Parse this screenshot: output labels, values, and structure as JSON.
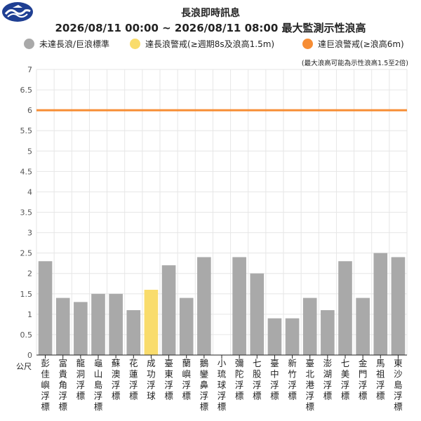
{
  "header": {
    "title_line1": "長浪即時訊息",
    "title_line2": "2026/08/11 00:00 ~ 2026/08/11 08:00 最大監測示性浪高",
    "logo_icon": "cwa-logo-icon"
  },
  "legend": [
    {
      "label": "未達長浪/巨浪標準",
      "color": "#a9a9a9"
    },
    {
      "label": "達長浪警戒(≥週期8s及浪高1.5m)",
      "color": "#f9dc6c"
    },
    {
      "label": "達巨浪警戒(≥浪高6m)",
      "color": "#f78d34"
    }
  ],
  "note": "(最大浪高可能為示性浪高1.5至2倍)",
  "chart_data": {
    "type": "bar",
    "ylabel": "公尺",
    "ylim": [
      0,
      7
    ],
    "yticks": [
      0,
      0.5,
      1,
      1.5,
      2,
      2.5,
      3,
      3.5,
      4,
      4.5,
      5,
      5.5,
      6,
      6.5,
      7
    ],
    "grid": true,
    "threshold_line": {
      "value": 6,
      "color": "#f78d34"
    },
    "categories": [
      "彭佳嶼浮標",
      "富貴角浮標",
      "龍洞浮標",
      "龜山島浮標",
      "蘇澳浮標",
      "花蓮浮標",
      "成功浮球",
      "臺東浮標",
      "蘭嶼浮標",
      "鵝鑾鼻浮標",
      "小琉球浮標",
      "彌陀浮標",
      "七股浮標",
      "臺中浮標",
      "新竹浮標",
      "臺北港浮標",
      "澎湖浮標",
      "七美浮標",
      "金門浮標",
      "馬祖浮標",
      "東沙島浮標"
    ],
    "values": [
      2.3,
      1.4,
      1.3,
      1.5,
      1.5,
      1.1,
      1.6,
      2.2,
      1.4,
      2.4,
      null,
      2.4,
      2.0,
      0.9,
      0.9,
      1.4,
      1.1,
      2.3,
      1.4,
      2.5,
      2.4
    ],
    "bar_colors": [
      "#a9a9a9",
      "#a9a9a9",
      "#a9a9a9",
      "#a9a9a9",
      "#a9a9a9",
      "#a9a9a9",
      "#f9dc6c",
      "#a9a9a9",
      "#a9a9a9",
      "#a9a9a9",
      "#a9a9a9",
      "#a9a9a9",
      "#a9a9a9",
      "#a9a9a9",
      "#a9a9a9",
      "#a9a9a9",
      "#a9a9a9",
      "#a9a9a9",
      "#a9a9a9",
      "#a9a9a9",
      "#a9a9a9"
    ]
  }
}
